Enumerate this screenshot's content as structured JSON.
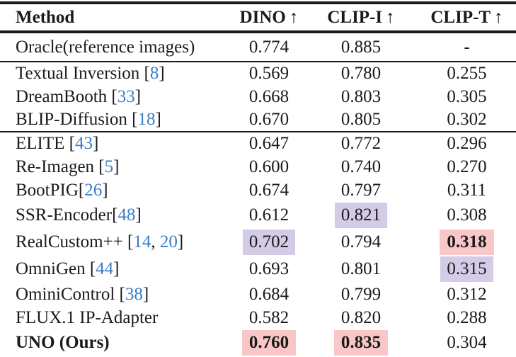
{
  "table": {
    "columns": [
      {
        "label": "Method",
        "arrow": ""
      },
      {
        "label": "DINO",
        "arrow": "↑"
      },
      {
        "label": "CLIP-I",
        "arrow": "↑"
      },
      {
        "label": "CLIP-T",
        "arrow": "↑"
      }
    ],
    "rows": [
      {
        "method": [
          {
            "text": "Oracle(reference images)",
            "cite": false
          }
        ],
        "values": [
          {
            "v": "0.774"
          },
          {
            "v": "0.885"
          },
          {
            "v": "-"
          }
        ],
        "rule_after": true,
        "first_body": true
      },
      {
        "method": [
          {
            "text": "Textual Inversion [",
            "cite": false
          },
          {
            "text": "8",
            "cite": true
          },
          {
            "text": "]",
            "cite": false
          }
        ],
        "values": [
          {
            "v": "0.569"
          },
          {
            "v": "0.780"
          },
          {
            "v": "0.255"
          }
        ]
      },
      {
        "method": [
          {
            "text": "DreamBooth [",
            "cite": false
          },
          {
            "text": "33",
            "cite": true
          },
          {
            "text": "]",
            "cite": false
          }
        ],
        "values": [
          {
            "v": "0.668"
          },
          {
            "v": "0.803"
          },
          {
            "v": "0.305"
          }
        ]
      },
      {
        "method": [
          {
            "text": "BLIP-Diffusion [",
            "cite": false
          },
          {
            "text": "18",
            "cite": true
          },
          {
            "text": "]",
            "cite": false
          }
        ],
        "values": [
          {
            "v": "0.670"
          },
          {
            "v": "0.805"
          },
          {
            "v": "0.302"
          }
        ],
        "rule_after": true
      },
      {
        "method": [
          {
            "text": "ELITE [",
            "cite": false
          },
          {
            "text": "43",
            "cite": true
          },
          {
            "text": "]",
            "cite": false
          }
        ],
        "values": [
          {
            "v": "0.647"
          },
          {
            "v": "0.772"
          },
          {
            "v": "0.296"
          }
        ]
      },
      {
        "method": [
          {
            "text": "Re-Imagen [",
            "cite": false
          },
          {
            "text": "5",
            "cite": true
          },
          {
            "text": "]",
            "cite": false
          }
        ],
        "values": [
          {
            "v": "0.600"
          },
          {
            "v": "0.740"
          },
          {
            "v": "0.270"
          }
        ]
      },
      {
        "method": [
          {
            "text": "BootPIG[",
            "cite": false
          },
          {
            "text": "26",
            "cite": true
          },
          {
            "text": "]",
            "cite": false
          }
        ],
        "values": [
          {
            "v": "0.674"
          },
          {
            "v": "0.797"
          },
          {
            "v": "0.311"
          }
        ]
      },
      {
        "method": [
          {
            "text": "SSR-Encoder[",
            "cite": false
          },
          {
            "text": "48",
            "cite": true
          },
          {
            "text": "]",
            "cite": false
          }
        ],
        "values": [
          {
            "v": "0.612"
          },
          {
            "v": "0.821",
            "hl": "second"
          },
          {
            "v": "0.308"
          }
        ],
        "tall": true
      },
      {
        "method": [
          {
            "text": "RealCustom++ [",
            "cite": false
          },
          {
            "text": "14",
            "cite": true
          },
          {
            "text": ", ",
            "cite": false
          },
          {
            "text": "20",
            "cite": true
          },
          {
            "text": "]",
            "cite": false
          }
        ],
        "values": [
          {
            "v": "0.702",
            "hl": "second"
          },
          {
            "v": "0.794"
          },
          {
            "v": "0.318",
            "hl": "best"
          }
        ],
        "tall": true
      },
      {
        "method": [
          {
            "text": "OmniGen [",
            "cite": false
          },
          {
            "text": "44",
            "cite": true
          },
          {
            "text": "]",
            "cite": false
          }
        ],
        "values": [
          {
            "v": "0.693"
          },
          {
            "v": "0.801"
          },
          {
            "v": "0.315",
            "hl": "second"
          }
        ],
        "tall": true
      },
      {
        "method": [
          {
            "text": "OminiControl [",
            "cite": false
          },
          {
            "text": "38",
            "cite": true
          },
          {
            "text": "]",
            "cite": false
          }
        ],
        "values": [
          {
            "v": "0.684"
          },
          {
            "v": "0.799"
          },
          {
            "v": "0.312"
          }
        ]
      },
      {
        "method": [
          {
            "text": "FLUX.1 IP-Adapter",
            "cite": false
          }
        ],
        "values": [
          {
            "v": "0.582"
          },
          {
            "v": "0.820"
          },
          {
            "v": "0.288"
          }
        ]
      },
      {
        "method": [
          {
            "text": "UNO (Ours)",
            "cite": false
          }
        ],
        "values": [
          {
            "v": "0.760",
            "hl": "best"
          },
          {
            "v": "0.835",
            "hl": "best"
          },
          {
            "v": "0.304"
          }
        ],
        "bold": true,
        "tall": true
      }
    ]
  },
  "colors": {
    "best_highlight": "#f9c7c7",
    "second_highlight": "#d4cbe7",
    "citation_blue": "#3a7dc8",
    "ink": "#1a1a1a"
  }
}
